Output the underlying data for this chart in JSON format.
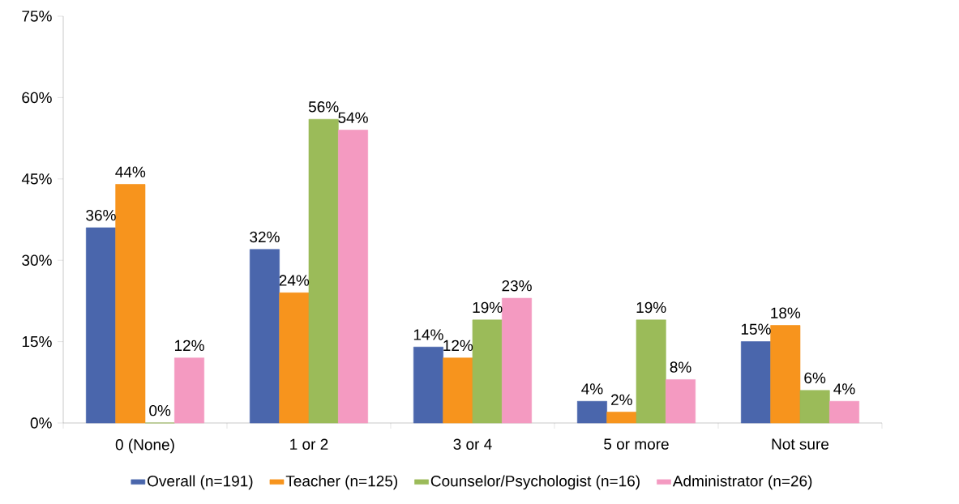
{
  "chart_data": {
    "type": "bar",
    "categories": [
      "0 (None)",
      "1 or 2",
      "3 or 4",
      "5 or more",
      "Not sure"
    ],
    "series": [
      {
        "name": "Overall (n=191)",
        "color": "#4a66ac",
        "values": [
          36,
          32,
          14,
          4,
          15
        ],
        "value_labels": [
          "36%",
          "32%",
          "14%",
          "4%",
          "15%"
        ]
      },
      {
        "name": "Teacher (n=125)",
        "color": "#f7941d",
        "values": [
          44,
          24,
          12,
          2,
          18
        ],
        "value_labels": [
          "44%",
          "24%",
          "12%",
          "2%",
          "18%"
        ]
      },
      {
        "name": "Counselor/Psychologist (n=16)",
        "color": "#9bbb59",
        "values": [
          0,
          56,
          19,
          19,
          6
        ],
        "value_labels": [
          "0%",
          "56%",
          "19%",
          "19%",
          "6%"
        ]
      },
      {
        "name": "Administrator (n=26)",
        "color": "#f49ac1",
        "values": [
          12,
          54,
          23,
          8,
          4
        ],
        "value_labels": [
          "12%",
          "54%",
          "23%",
          "8%",
          "4%"
        ]
      }
    ],
    "ylim": [
      0,
      75
    ],
    "yticks": [
      {
        "value": 0,
        "label": "0%"
      },
      {
        "value": 15,
        "label": "15%"
      },
      {
        "value": 30,
        "label": "30%"
      },
      {
        "value": 45,
        "label": "45%"
      },
      {
        "value": 60,
        "label": "60%"
      },
      {
        "value": 75,
        "label": "75%"
      }
    ],
    "grid": false,
    "legend": "bottom"
  }
}
